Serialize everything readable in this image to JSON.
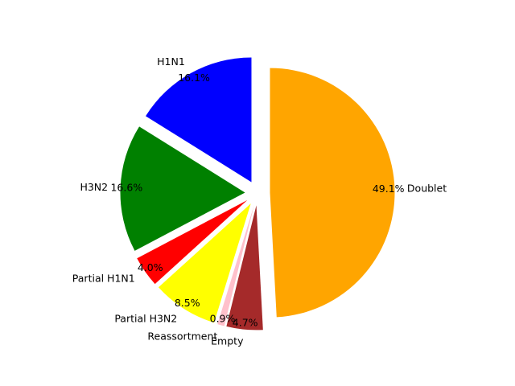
{
  "chart_data": {
    "type": "pie",
    "title": "",
    "start_angle_deg": 90,
    "direction": "counterclockwise",
    "slices": [
      {
        "label": "H1N1",
        "pct_label": "16.1%",
        "value": 16.1,
        "color": "#0000ff",
        "explode": 0.1
      },
      {
        "label": "H3N2",
        "pct_label": "16.6%",
        "value": 16.6,
        "color": "#008000",
        "explode": 0.1
      },
      {
        "label": "Partial H1N1",
        "pct_label": "4.0%",
        "value": 4.0,
        "color": "#ff0000",
        "explode": 0.1
      },
      {
        "label": "Partial H3N2",
        "pct_label": "8.5%",
        "value": 8.5,
        "color": "#ffff00",
        "explode": 0.1
      },
      {
        "label": "Reassortment",
        "pct_label": "0.9%",
        "value": 0.9,
        "color": "#ffc0cb",
        "explode": 0.1
      },
      {
        "label": "Empty",
        "pct_label": "4.7%",
        "value": 4.7,
        "color": "#a52a2a",
        "explode": 0.1
      },
      {
        "label": "Doublet",
        "pct_label": "49.1%",
        "value": 49.1,
        "color": "#ffa500",
        "explode": 0.1
      }
    ]
  }
}
